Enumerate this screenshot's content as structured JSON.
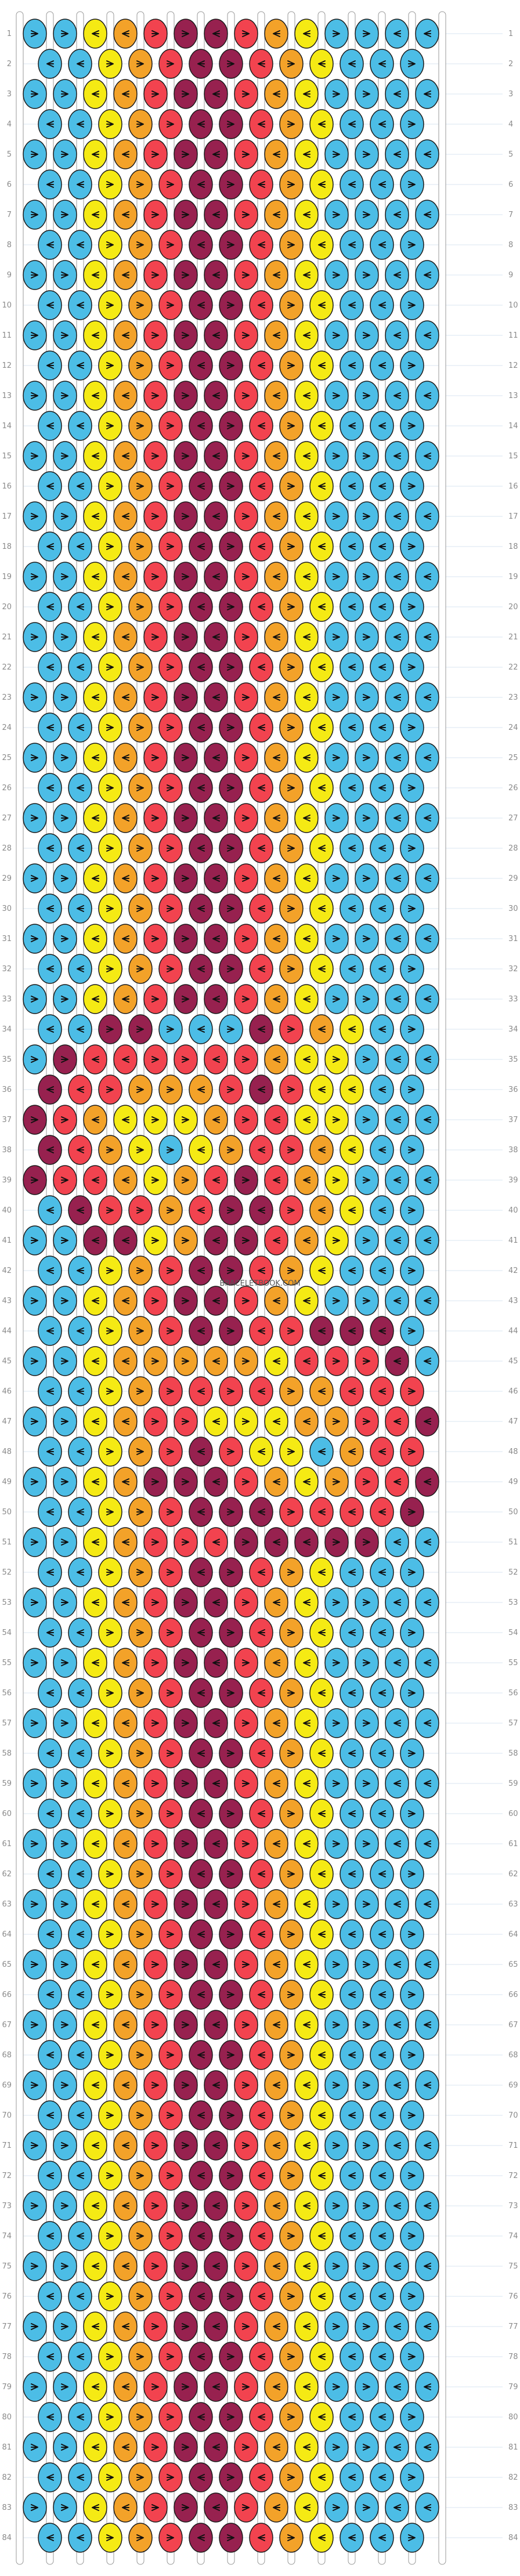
{
  "title": "",
  "watermark": "BRACELETBOOK.COM",
  "strings": 15,
  "rows": 84,
  "row_numbers": {
    "left": [
      1,
      2,
      3,
      4,
      5,
      6,
      7,
      8,
      9,
      10,
      11,
      12,
      13,
      14,
      15,
      16,
      17,
      18,
      19,
      20,
      21,
      22,
      23,
      24,
      25,
      26,
      27,
      28,
      29,
      30,
      31,
      32,
      33,
      34,
      35,
      36,
      37,
      38,
      39,
      40,
      41,
      42,
      43,
      44,
      45,
      46,
      47,
      48,
      49,
      50,
      51,
      52,
      53,
      54,
      55,
      56,
      57,
      58,
      59,
      60,
      61,
      62,
      63,
      64,
      65,
      66,
      67,
      68,
      69,
      70,
      71,
      72,
      73,
      74,
      75,
      76,
      77,
      78,
      79,
      80,
      81,
      82,
      83,
      84
    ],
    "right": [
      1,
      2,
      3,
      4,
      5,
      6,
      7,
      8,
      9,
      10,
      11,
      12,
      13,
      14,
      15,
      16,
      17,
      18,
      19,
      20,
      21,
      22,
      23,
      24,
      25,
      26,
      27,
      28,
      29,
      30,
      31,
      32,
      33,
      34,
      35,
      36,
      37,
      38,
      39,
      40,
      41,
      42,
      43,
      44,
      45,
      46,
      47,
      48,
      49,
      50,
      51,
      52,
      53,
      54,
      55,
      56,
      57,
      58,
      59,
      60,
      61,
      62,
      63,
      64,
      65,
      66,
      67,
      68,
      69,
      70,
      71,
      72,
      73,
      74,
      75,
      76,
      77,
      78,
      79,
      80,
      81,
      82,
      83,
      84
    ]
  },
  "colors": {
    "A": "#4cbde6",
    "B": "#f5ea14",
    "C": "#f3a229",
    "D": "#f2434f",
    "E": "#97214f",
    "outline": "#1a1a1a",
    "arrow": "#111111",
    "grid_line": "#d9e6f2",
    "row_number": "#8a8a8a"
  },
  "string_colors": [
    "A",
    "A",
    "A",
    "A",
    "B",
    "C",
    "D",
    "E",
    "D",
    "C",
    "B",
    "A",
    "A",
    "A",
    "A"
  ],
  "legend_arrows": [
    "forward",
    "backward",
    "forward-backward",
    "backward-forward"
  ],
  "base_knot_colors": [
    "A",
    "A",
    "B",
    "C",
    "D",
    "E",
    "E",
    "D",
    "C",
    "B",
    "A",
    "A",
    "A",
    "A"
  ],
  "motif_rows": {
    "34": [
      "A",
      "A",
      "E",
      "E",
      "A",
      "A",
      "A",
      "E",
      "D",
      "C",
      "B",
      "A",
      "A",
      "A"
    ],
    "35": [
      "A",
      "E",
      "D",
      "D",
      "D",
      "D",
      "D",
      "D",
      "C",
      "B",
      "B",
      "A",
      "A",
      "A"
    ],
    "36": [
      "E",
      "D",
      "D",
      "C",
      "C",
      "C",
      "D",
      "E",
      "D",
      "B",
      "B",
      "A",
      "A",
      "A"
    ],
    "37": [
      "E",
      "D",
      "C",
      "B",
      "B",
      "B",
      "C",
      "D",
      "D",
      "B",
      "B",
      "A",
      "A",
      "A"
    ],
    "38": [
      "E",
      "D",
      "C",
      "B",
      "A",
      "B",
      "C",
      "D",
      "D",
      "C",
      "B",
      "A",
      "A",
      "A"
    ],
    "39": [
      "E",
      "D",
      "D",
      "C",
      "B",
      "C",
      "D",
      "E",
      "D",
      "C",
      "B",
      "A",
      "A",
      "A"
    ],
    "40": [
      "A",
      "E",
      "D",
      "D",
      "C",
      "D",
      "E",
      "E",
      "D",
      "C",
      "B",
      "A",
      "A",
      "A"
    ],
    "41": [
      "A",
      "A",
      "E",
      "E",
      "B",
      "C",
      "E",
      "E",
      "D",
      "C",
      "B",
      "A",
      "A",
      "A"
    ],
    "44": [
      "A",
      "A",
      "B",
      "C",
      "D",
      "E",
      "E",
      "D",
      "D",
      "E",
      "E",
      "E",
      "A",
      "A"
    ],
    "45": [
      "A",
      "A",
      "B",
      "C",
      "C",
      "C",
      "C",
      "C",
      "B",
      "D",
      "D",
      "D",
      "E",
      "A"
    ],
    "46": [
      "A",
      "A",
      "B",
      "C",
      "D",
      "D",
      "D",
      "D",
      "C",
      "C",
      "D",
      "D",
      "D",
      "E"
    ],
    "47": [
      "A",
      "A",
      "B",
      "C",
      "D",
      "D",
      "B",
      "B",
      "B",
      "C",
      "C",
      "D",
      "D",
      "E"
    ],
    "48": [
      "A",
      "A",
      "B",
      "C",
      "D",
      "E",
      "D",
      "B",
      "B",
      "A",
      "C",
      "D",
      "D",
      "E"
    ],
    "49": [
      "A",
      "A",
      "B",
      "C",
      "E",
      "E",
      "E",
      "D",
      "C",
      "B",
      "C",
      "D",
      "D",
      "E"
    ],
    "50": [
      "A",
      "A",
      "B",
      "C",
      "D",
      "E",
      "E",
      "E",
      "D",
      "D",
      "D",
      "D",
      "E",
      "A"
    ],
    "51": [
      "A",
      "A",
      "B",
      "C",
      "D",
      "D",
      "D",
      "E",
      "E",
      "E",
      "E",
      "E",
      "A",
      "A"
    ]
  },
  "arrow_pattern_even": [
    "forward",
    "forward",
    "backward",
    "backward",
    "forward",
    "forward",
    "backward",
    "forward",
    "backward",
    "backward",
    "forward",
    "forward",
    "backward",
    "backward"
  ],
  "arrow_pattern_odd": [
    "backward",
    "backward",
    "forward",
    "forward",
    "forward",
    "backward",
    "forward",
    "backward",
    "forward",
    "backward",
    "backward",
    "backward",
    "forward",
    "forward"
  ]
}
